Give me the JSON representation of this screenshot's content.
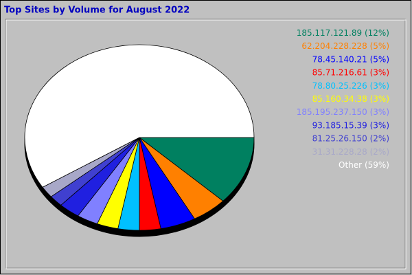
{
  "chart_data": {
    "type": "pie",
    "title": "Top Sites by Volume for August 2022",
    "categories": [
      "185.117.121.89",
      "62.204.228.228",
      "78.45.140.21",
      "85.71.216.61",
      "78.80.25.226",
      "85.160.34.38",
      "185.195.237.150",
      "93.185.15.39",
      "81.25.26.150",
      "31.31.228.28",
      "Other"
    ],
    "values": [
      12,
      5,
      5,
      3,
      3,
      3,
      3,
      3,
      2,
      2,
      59
    ],
    "value_labels": [
      "(12%)",
      "(5%)",
      "(5%)",
      "(3%)",
      "(3%)",
      "(3%)",
      "(3%)",
      "(3%)",
      "(2%)",
      "(2%)",
      "(59%)"
    ],
    "colors": [
      "#008060",
      "#ff8000",
      "#0000ff",
      "#ff0000",
      "#00c0ff",
      "#ffff00",
      "#8080ff",
      "#2020e0",
      "#4040d0",
      "#a8a8c8",
      "#ffffff"
    ]
  }
}
